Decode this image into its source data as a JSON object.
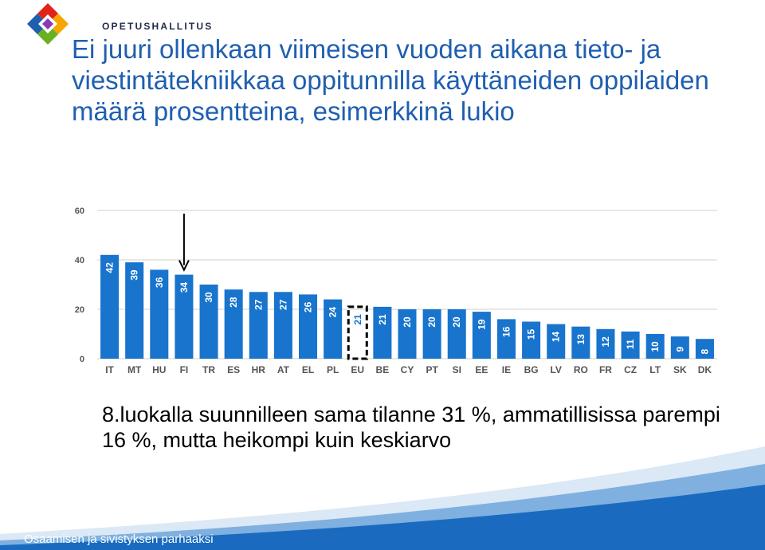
{
  "brand": {
    "name": "OPETUSHALLITUS",
    "colors": {
      "accent": "#1f5fb0",
      "bar": "#1874cd",
      "footer": "#1a6bbf"
    }
  },
  "title": "Ei juuri ollenkaan viimeisen vuoden aikana tieto- ja viestintätekniikkaa oppitunnilla käyttäneiden oppilaiden määrä prosentteina, esimerkkinä lukio",
  "note": "8.luokalla suunnilleen sama tilanne 31 %, ammatillisissa parempi 16 %, mutta heikompi kuin keskiarvo",
  "footer": {
    "text": "Osaamisen ja sivistyksen parhaaksi"
  },
  "chart_data": {
    "type": "bar",
    "categories": [
      "IT",
      "MT",
      "HU",
      "FI",
      "TR",
      "ES",
      "HR",
      "AT",
      "EL",
      "PL",
      "EU",
      "BE",
      "CY",
      "PT",
      "SI",
      "EE",
      "IE",
      "BG",
      "LV",
      "RO",
      "FR",
      "CZ",
      "LT",
      "SK",
      "DK"
    ],
    "values": [
      42,
      39,
      36,
      34,
      30,
      28,
      27,
      27,
      26,
      24,
      21,
      21,
      20,
      20,
      20,
      19,
      16,
      15,
      14,
      13,
      12,
      11,
      10,
      9,
      8
    ],
    "ylim": [
      0,
      60
    ],
    "yticks": [
      0,
      20,
      40,
      60
    ],
    "grid": true,
    "highlight": {
      "outlined": "EU",
      "arrow": "FI"
    }
  }
}
